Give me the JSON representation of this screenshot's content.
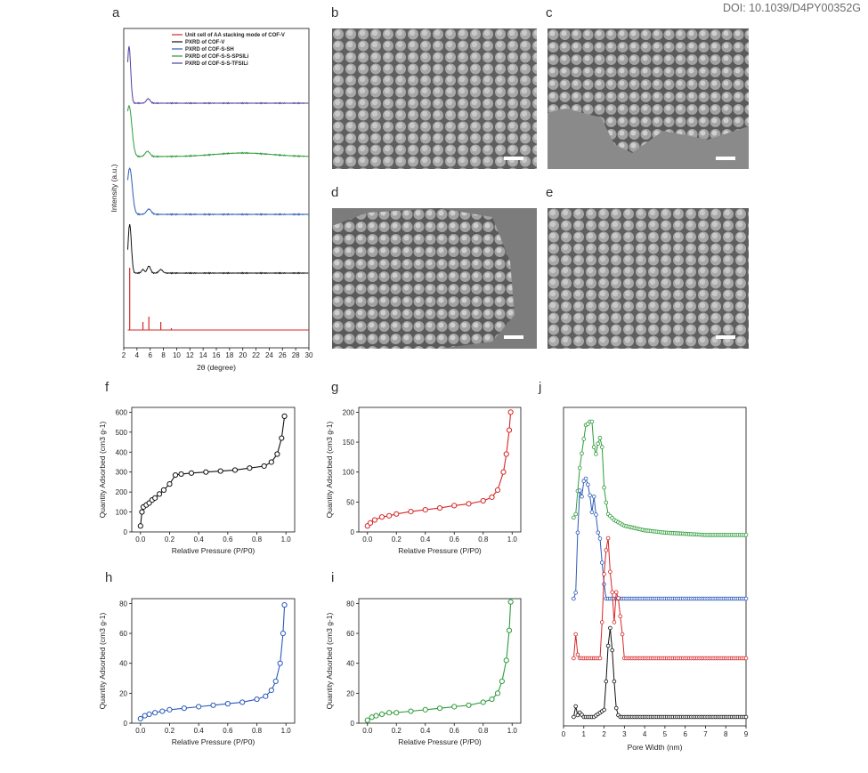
{
  "doi": "DOI: 10.1039/D4PY00352G",
  "panel_labels": {
    "a": "a",
    "b": "b",
    "c": "c",
    "d": "d",
    "e": "e",
    "f": "f",
    "g": "g",
    "h": "h",
    "i": "i",
    "j": "j"
  },
  "colors": {
    "red": "#d62728",
    "black": "#111111",
    "blue": "#2b5ab8",
    "green": "#2e9b3a",
    "purple": "#4b3fa0",
    "sem_bg": "#8c8c8c"
  },
  "chart_data": [
    {
      "id": "a",
      "type": "line",
      "xlabel": "2θ (degree)",
      "ylabel": "Intensity (a.u.)",
      "xlim": [
        2,
        30
      ],
      "xticks": [
        2,
        4,
        6,
        8,
        10,
        12,
        14,
        16,
        18,
        20,
        22,
        24,
        26,
        28,
        30
      ],
      "series": [
        {
          "name": "Unit cell of AA stacking mode of COF-V",
          "color": "#d62728"
        },
        {
          "name": "PXRD of COF-V",
          "color": "#111111"
        },
        {
          "name": "PXRD of COF-S-SH",
          "color": "#2b5ab8"
        },
        {
          "name": "PXRD of COF-S-S-SPSILi",
          "color": "#2e9b3a"
        },
        {
          "name": "PXRD of COF-S-S-TFSILi",
          "color": "#4b3fa0"
        }
      ]
    },
    {
      "id": "f",
      "type": "scatter",
      "xlabel": "Relative Pressure (P/P0)",
      "ylabel": "Quantity Adsorbed (cm3 g-1)",
      "xlim": [
        0,
        1
      ],
      "ylim": [
        0,
        600
      ],
      "xticks": [
        "0.0",
        "0.2",
        "0.4",
        "0.6",
        "0.8",
        "1.0"
      ],
      "yticks": [
        "0",
        "100",
        "200",
        "300",
        "400",
        "500",
        "600"
      ],
      "color": "#111111",
      "x": [
        0.0,
        0.01,
        0.02,
        0.04,
        0.06,
        0.08,
        0.1,
        0.13,
        0.16,
        0.2,
        0.24,
        0.28,
        0.35,
        0.45,
        0.55,
        0.65,
        0.75,
        0.85,
        0.9,
        0.94,
        0.97,
        0.99
      ],
      "values": [
        30,
        100,
        125,
        135,
        145,
        160,
        170,
        190,
        210,
        240,
        285,
        290,
        295,
        300,
        305,
        310,
        320,
        330,
        350,
        390,
        470,
        580
      ]
    },
    {
      "id": "g",
      "type": "scatter",
      "xlabel": "Relative Pressure (P/P0)",
      "ylabel": "Quantity Adsorbed (cm3 g-1)",
      "xlim": [
        0,
        1
      ],
      "ylim": [
        0,
        200
      ],
      "xticks": [
        "0.0",
        "0.2",
        "0.4",
        "0.6",
        "0.8",
        "1.0"
      ],
      "yticks": [
        "0",
        "50",
        "100",
        "150",
        "200"
      ],
      "color": "#d62728",
      "x": [
        0.0,
        0.02,
        0.05,
        0.1,
        0.15,
        0.2,
        0.3,
        0.4,
        0.5,
        0.6,
        0.7,
        0.8,
        0.86,
        0.9,
        0.94,
        0.96,
        0.98,
        0.99
      ],
      "values": [
        10,
        15,
        20,
        25,
        27,
        30,
        34,
        37,
        40,
        44,
        47,
        52,
        58,
        70,
        100,
        130,
        170,
        200
      ]
    },
    {
      "id": "h",
      "type": "scatter",
      "xlabel": "Relative Pressure (P/P0)",
      "ylabel": "Quantity Adsorbed (cm3 g-1)",
      "xlim": [
        0,
        1
      ],
      "ylim": [
        0,
        80
      ],
      "xticks": [
        "0.0",
        "0.2",
        "0.4",
        "0.6",
        "0.8",
        "1.0"
      ],
      "yticks": [
        "0",
        "20",
        "40",
        "60",
        "80"
      ],
      "color": "#2b5ab8",
      "x": [
        0.0,
        0.03,
        0.06,
        0.1,
        0.15,
        0.2,
        0.3,
        0.4,
        0.5,
        0.6,
        0.7,
        0.8,
        0.86,
        0.9,
        0.93,
        0.96,
        0.98,
        0.99
      ],
      "values": [
        3,
        5,
        6,
        7,
        8,
        9,
        10,
        11,
        12,
        13,
        14,
        16,
        18,
        22,
        28,
        40,
        60,
        79
      ]
    },
    {
      "id": "i",
      "type": "scatter",
      "xlabel": "Relative Pressure (P/P0)",
      "ylabel": "Quantity Adsorbed (cm3 g-1)",
      "xlim": [
        0,
        1
      ],
      "ylim": [
        0,
        80
      ],
      "xticks": [
        "0.0",
        "0.2",
        "0.4",
        "0.6",
        "0.8",
        "1.0"
      ],
      "yticks": [
        "0",
        "20",
        "40",
        "60",
        "80"
      ],
      "color": "#2e9b3a",
      "x": [
        0.0,
        0.03,
        0.06,
        0.1,
        0.15,
        0.2,
        0.3,
        0.4,
        0.5,
        0.6,
        0.7,
        0.8,
        0.86,
        0.9,
        0.93,
        0.96,
        0.98,
        0.99
      ],
      "values": [
        2,
        4,
        5,
        6,
        7,
        7,
        8,
        9,
        10,
        11,
        12,
        14,
        16,
        20,
        28,
        42,
        62,
        81
      ]
    },
    {
      "id": "j",
      "type": "line",
      "xlabel": "Pore Width (nm)",
      "xlim": [
        0,
        9
      ],
      "xticks": [
        "0",
        "1",
        "2",
        "3",
        "4",
        "5",
        "6",
        "7",
        "8",
        "9"
      ],
      "series": [
        {
          "color": "#2e9b3a",
          "x": [
            0.4,
            0.5,
            0.6,
            0.8,
            1.0,
            1.1,
            1.2,
            1.3,
            1.4,
            1.5,
            1.6,
            1.7,
            1.8,
            1.9,
            2.0,
            2.1,
            2.2,
            2.5,
            3,
            4,
            5,
            6,
            7,
            8,
            9
          ],
          "values": [
            0.17,
            0.17,
            0.2,
            0.6,
            0.85,
            0.97,
            0.98,
            1.0,
            1.0,
            0.78,
            0.72,
            0.81,
            0.86,
            0.78,
            0.43,
            0.3,
            0.2,
            0.15,
            0.1,
            0.06,
            0.04,
            0.03,
            0.02,
            0.02,
            0.02
          ]
        },
        {
          "color": "#2b5ab8",
          "x": [
            0.4,
            0.5,
            0.6,
            0.7,
            0.8,
            0.9,
            1.0,
            1.1,
            1.2,
            1.3,
            1.4,
            1.5,
            1.6,
            1.7,
            1.8,
            1.9,
            2.0,
            2.1,
            2.2,
            3,
            4,
            5,
            6,
            7,
            8,
            9
          ],
          "values": [
            0,
            0,
            0.05,
            0.55,
            0.9,
            0.85,
            0.98,
            1.0,
            0.95,
            0.86,
            0.72,
            0.85,
            0.7,
            0.55,
            0.5,
            0.3,
            0.12,
            0.0,
            0.0,
            0,
            0,
            0,
            0,
            0,
            0,
            0
          ]
        },
        {
          "color": "#d62728",
          "x": [
            0.4,
            0.5,
            0.6,
            0.7,
            0.8,
            1.0,
            1.5,
            1.8,
            1.9,
            2.0,
            2.1,
            2.2,
            2.3,
            2.4,
            2.5,
            2.6,
            2.7,
            2.8,
            2.9,
            3.0,
            4,
            5,
            6,
            7,
            8,
            9
          ],
          "values": [
            0,
            0,
            0.2,
            0.03,
            0.0,
            0.0,
            0.0,
            0.0,
            0.3,
            0.7,
            0.9,
            1.0,
            0.72,
            0.55,
            0.3,
            0.55,
            0.5,
            0.35,
            0.2,
            0.0,
            0,
            0,
            0,
            0,
            0,
            0
          ]
        },
        {
          "color": "#111111",
          "x": [
            0.4,
            0.5,
            0.6,
            0.7,
            0.8,
            1.0,
            1.5,
            2.0,
            2.1,
            2.2,
            2.3,
            2.4,
            2.5,
            2.6,
            2.7,
            2.8,
            3.0,
            4,
            5,
            6,
            7,
            8,
            9
          ],
          "values": [
            0,
            0,
            0.12,
            0.02,
            0.05,
            0.0,
            0.0,
            0.08,
            0.4,
            0.8,
            1.0,
            0.75,
            0.4,
            0.1,
            0.02,
            0.0,
            0,
            0,
            0,
            0,
            0,
            0,
            0
          ]
        }
      ]
    }
  ]
}
